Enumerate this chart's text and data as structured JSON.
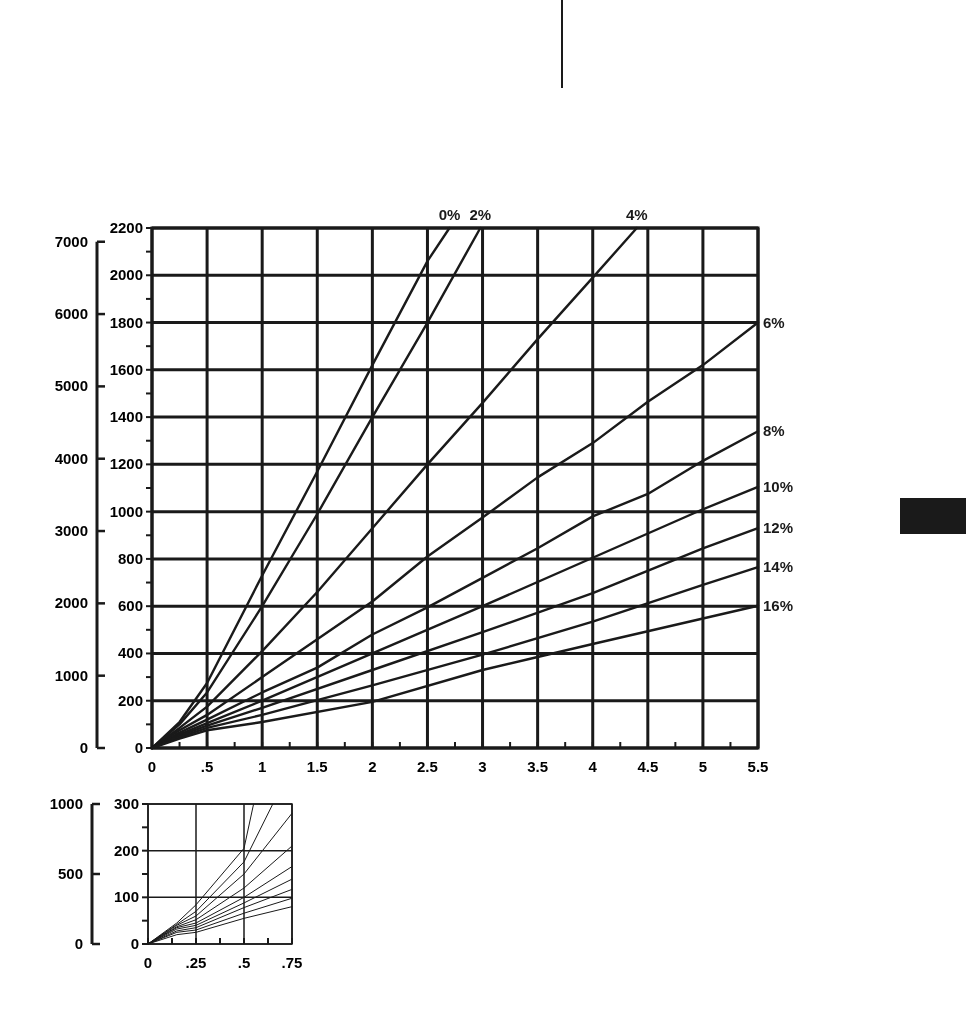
{
  "chart_data": [
    {
      "type": "line",
      "xlim": [
        0,
        5.5
      ],
      "xticks": [
        0,
        {
          "value": 0.25,
          "label": null
        },
        {
          "value": 0.5,
          "label": ".5"
        },
        {
          "value": 0.75,
          "label": null
        },
        1,
        {
          "value": 1.25,
          "label": null
        },
        1.5,
        {
          "value": 1.75,
          "label": null
        },
        2,
        {
          "value": 2.25,
          "label": null
        },
        2.5,
        {
          "value": 2.75,
          "label": null
        },
        3,
        {
          "value": 3.25,
          "label": null
        },
        3.5,
        {
          "value": 3.75,
          "label": null
        },
        4,
        {
          "value": 4.25,
          "label": null
        },
        4.5,
        {
          "value": 4.75,
          "label": null
        },
        5,
        {
          "value": 5.25,
          "label": null
        },
        5.5
      ],
      "ylim": [
        0,
        2200
      ],
      "yticks": [
        0,
        {
          "value": 100,
          "label": null
        },
        200,
        {
          "value": 300,
          "label": null
        },
        400,
        {
          "value": 500,
          "label": null
        },
        600,
        {
          "value": 700,
          "label": null
        },
        800,
        {
          "value": 900,
          "label": null
        },
        1000,
        {
          "value": 1100,
          "label": null
        },
        1200,
        {
          "value": 1300,
          "label": null
        },
        1400,
        {
          "value": 1500,
          "label": null
        },
        1600,
        {
          "value": 1700,
          "label": null
        },
        1800,
        {
          "value": 1900,
          "label": null
        },
        2000,
        {
          "value": 2100,
          "label": null
        },
        2200
      ],
      "y2lim": [
        0,
        7190
      ],
      "y2ticks": [
        0,
        1000,
        2000,
        3000,
        4000,
        5000,
        6000,
        7000
      ],
      "grid": true,
      "series": [
        {
          "name": "0%",
          "color": "#1a1a1a",
          "x": [
            0,
            0.25,
            0.5,
            1,
            1.5,
            2,
            2.5,
            2.7
          ],
          "values": [
            0,
            110,
            275,
            730,
            1170,
            1620,
            2060,
            2200
          ]
        },
        {
          "name": "2%",
          "color": "#1a1a1a",
          "x": [
            0,
            0.25,
            0.5,
            1,
            1.5,
            2,
            2.5,
            2.98
          ],
          "values": [
            0,
            100,
            235,
            600,
            990,
            1400,
            1800,
            2200
          ]
        },
        {
          "name": "4%",
          "color": "#1a1a1a",
          "x": [
            0,
            0.25,
            0.5,
            1,
            1.5,
            2,
            2.5,
            3,
            3.5,
            4,
            4.4
          ],
          "values": [
            0,
            85,
            175,
            410,
            660,
            930,
            1200,
            1460,
            1730,
            1990,
            2200
          ]
        },
        {
          "name": "6%",
          "color": "#1a1a1a",
          "x": [
            0,
            0.25,
            0.5,
            1,
            2,
            2.5,
            3,
            3.5,
            4,
            4.5,
            5,
            5.5
          ],
          "values": [
            0,
            75,
            140,
            300,
            620,
            810,
            975,
            1145,
            1290,
            1465,
            1620,
            1800
          ]
        },
        {
          "name": "8%",
          "color": "#1a1a1a",
          "x": [
            0,
            0.25,
            0.5,
            1,
            1.5,
            2,
            2.5,
            3,
            3.5,
            4,
            4.5,
            5,
            5.5
          ],
          "values": [
            0,
            65,
            120,
            235,
            340,
            480,
            595,
            720,
            845,
            980,
            1075,
            1215,
            1340
          ]
        },
        {
          "name": "10%",
          "color": "#1a1a1a",
          "x": [
            0,
            0.25,
            0.5,
            1,
            2,
            3,
            4,
            5,
            5.5
          ],
          "values": [
            0,
            58,
            105,
            200,
            400,
            600,
            805,
            1010,
            1105
          ]
        },
        {
          "name": "12%",
          "color": "#1a1a1a",
          "x": [
            0,
            0.25,
            0.5,
            1,
            2,
            3,
            4,
            5,
            5.5
          ],
          "values": [
            0,
            52,
            95,
            170,
            330,
            490,
            655,
            845,
            930
          ]
        },
        {
          "name": "14%",
          "color": "#1a1a1a",
          "x": [
            0,
            0.25,
            0.5,
            1,
            2,
            3,
            4,
            5,
            5.5
          ],
          "values": [
            0,
            46,
            85,
            140,
            265,
            395,
            535,
            690,
            765
          ]
        },
        {
          "name": "16%",
          "color": "#1a1a1a",
          "x": [
            0,
            0.25,
            0.5,
            1,
            2,
            3,
            3.5,
            4,
            5,
            5.5
          ],
          "values": [
            0,
            40,
            75,
            110,
            195,
            330,
            385,
            440,
            548,
            602
          ]
        }
      ]
    },
    {
      "type": "line",
      "xlim": [
        0,
        0.75
      ],
      "xticks": [
        0,
        {
          "value": 0.125,
          "label": null
        },
        {
          "value": 0.25,
          "label": ".25"
        },
        {
          "value": 0.375,
          "label": null
        },
        {
          "value": 0.5,
          "label": ".5"
        },
        {
          "value": 0.625,
          "label": null
        },
        {
          "value": 0.75,
          "label": ".75"
        }
      ],
      "ylim": [
        0,
        300
      ],
      "yticks": [
        0,
        {
          "value": 50,
          "label": null
        },
        100,
        {
          "value": 150,
          "label": null
        },
        200,
        {
          "value": 250,
          "label": null
        },
        300
      ],
      "y2lim": [
        0,
        1000
      ],
      "y2ticks": [
        0,
        500,
        1000
      ],
      "grid": true,
      "series": [
        {
          "color": "#1a1a1a",
          "x": [
            0,
            0.15,
            0.25,
            0.5,
            0.55
          ],
          "values": [
            0,
            45,
            84,
            205,
            300
          ]
        },
        {
          "color": "#1a1a1a",
          "x": [
            0,
            0.15,
            0.25,
            0.5,
            0.65
          ],
          "values": [
            0,
            42,
            70,
            176,
            300
          ]
        },
        {
          "color": "#1a1a1a",
          "x": [
            0,
            0.15,
            0.25,
            0.5,
            0.75
          ],
          "values": [
            0,
            40,
            60,
            150,
            280
          ]
        },
        {
          "color": "#1a1a1a",
          "x": [
            0,
            0.15,
            0.25,
            0.5,
            0.75
          ],
          "values": [
            0,
            37,
            52,
            120,
            210
          ]
        },
        {
          "color": "#1a1a1a",
          "x": [
            0,
            0.15,
            0.25,
            0.5,
            0.75
          ],
          "values": [
            0,
            35,
            45,
            100,
            166
          ]
        },
        {
          "color": "#1a1a1a",
          "x": [
            0,
            0.15,
            0.25,
            0.5,
            0.75
          ],
          "values": [
            0,
            32,
            40,
            88,
            139
          ]
        },
        {
          "color": "#1a1a1a",
          "x": [
            0,
            0.15,
            0.25,
            0.5,
            0.75
          ],
          "values": [
            0,
            28,
            35,
            78,
            117
          ]
        },
        {
          "color": "#1a1a1a",
          "x": [
            0,
            0.15,
            0.25,
            0.5,
            0.75
          ],
          "values": [
            0,
            25,
            30,
            66,
            98
          ]
        },
        {
          "color": "#1a1a1a",
          "x": [
            0,
            0.15,
            0.25,
            0.5,
            0.75
          ],
          "values": [
            0,
            20,
            25,
            55,
            80
          ]
        }
      ]
    }
  ]
}
